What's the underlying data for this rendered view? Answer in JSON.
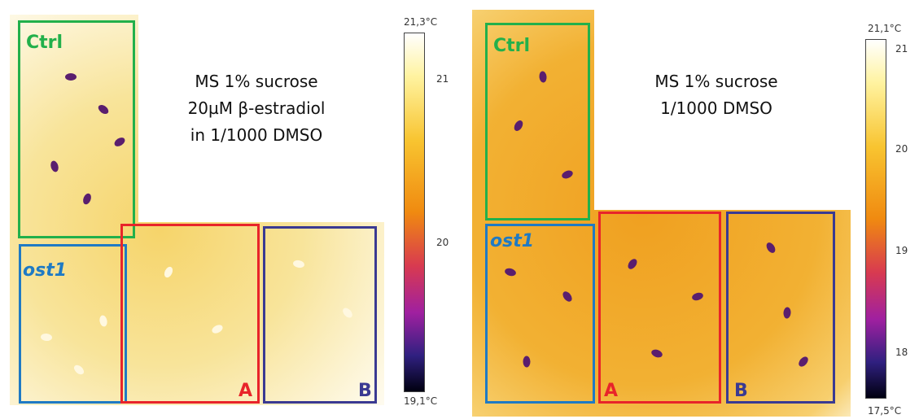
{
  "panels": [
    {
      "caption_lines": [
        "MS 1% sucrose",
        "20µM β-estradiol",
        "in 1/1000 DMSO"
      ],
      "boxes": [
        {
          "label": "Ctrl"
        },
        {
          "label": "ost1"
        },
        {
          "label": "A"
        },
        {
          "label": "B"
        }
      ],
      "colorbar": {
        "max_label": "21,3°C",
        "min_label": "19,1°C",
        "ticks": [
          "21",
          "20"
        ]
      }
    },
    {
      "caption_lines": [
        "MS 1% sucrose",
        "1/1000 DMSO"
      ],
      "boxes": [
        {
          "label": "Ctrl"
        },
        {
          "label": "ost1"
        },
        {
          "label": "A"
        },
        {
          "label": "B"
        }
      ],
      "colorbar": {
        "max_label": "21,1°C",
        "min_label": "17,5°C",
        "ticks": [
          "21",
          "20",
          "19",
          "18"
        ]
      }
    }
  ]
}
